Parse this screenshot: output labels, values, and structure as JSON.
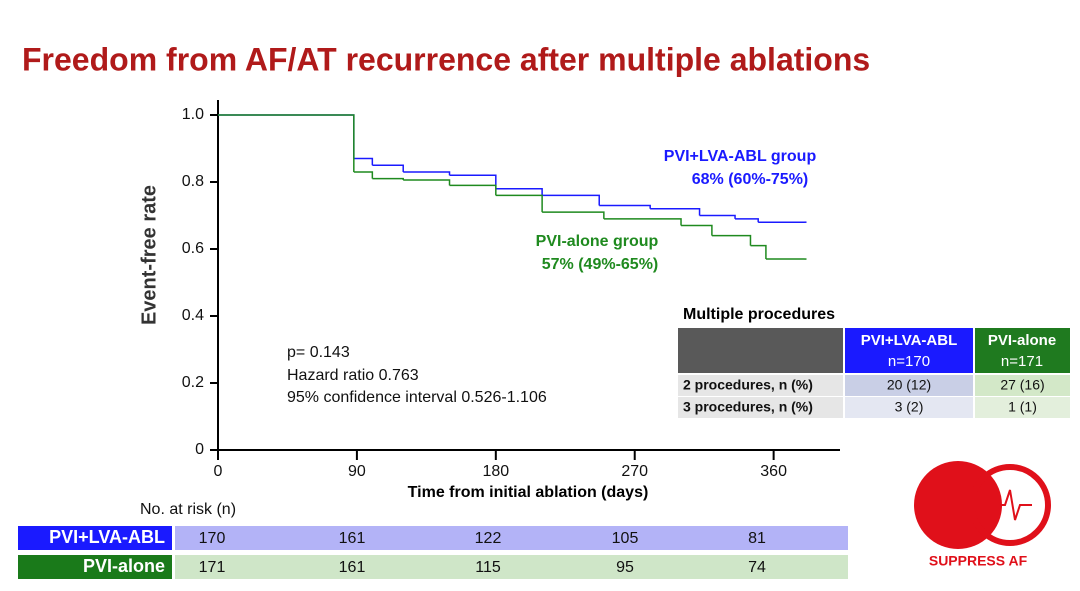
{
  "chart_data": {
    "type": "line",
    "step": true,
    "title": "Freedom from AF/AT recurrence after multiple ablations",
    "ylabel": "Event-free rate",
    "xlabel": "Time from initial ablation (days)",
    "xlim": [
      0,
      403
    ],
    "xticks": [
      0,
      90,
      180,
      270,
      360
    ],
    "ylim": [
      0,
      1
    ],
    "yticks": [
      0,
      0.2,
      0.4,
      0.6,
      0.8,
      {
        "value": 1,
        "label": "1.0"
      }
    ],
    "series": [
      {
        "name": "PVI+LVA-ABL group",
        "color": "#1a1aff",
        "x": [
          0,
          88,
          100,
          120,
          150,
          180,
          210,
          247,
          280,
          312,
          335,
          350,
          380
        ],
        "values": [
          1,
          0.87,
          0.85,
          0.83,
          0.82,
          0.78,
          0.76,
          0.73,
          0.72,
          0.7,
          0.69,
          0.68,
          0.68
        ]
      },
      {
        "name": "PVI-alone group",
        "color": "#1f8a1f",
        "x": [
          0,
          88,
          100,
          120,
          150,
          180,
          210,
          250,
          300,
          320,
          345,
          355,
          380
        ],
        "values": [
          1,
          0.83,
          0.81,
          0.806,
          0.79,
          0.76,
          0.71,
          0.69,
          0.67,
          0.64,
          0.61,
          0.57,
          0.57
        ]
      }
    ],
    "annotations": [
      "68% (60%-75%)",
      "57% (49%-65%)"
    ],
    "stats": [
      "p= 0.143",
      "Hazard ratio 0.763",
      "95% confidence interval 0.526-1.106"
    ]
  },
  "procedures_table": {
    "title": "Multiple procedures",
    "header": [
      [
        "PVI+LVA-ABL",
        "n=170"
      ],
      [
        "PVI-alone",
        "n=171"
      ]
    ],
    "rows": [
      [
        "2 procedures, n (%)",
        "20 (12)",
        "27 (16)"
      ],
      [
        "3 procedures, n (%)",
        "3 (2)",
        "1 (1)"
      ]
    ]
  },
  "risk_table": {
    "title": "No. at risk (n)",
    "rows": [
      {
        "name": "PVI+LVA-ABL",
        "values": [
          170,
          161,
          122,
          105,
          81
        ]
      },
      {
        "name": "PVI-alone",
        "values": [
          171,
          161,
          115,
          95,
          74
        ]
      }
    ]
  },
  "logo": {
    "text": "SUPPRESS AF"
  }
}
